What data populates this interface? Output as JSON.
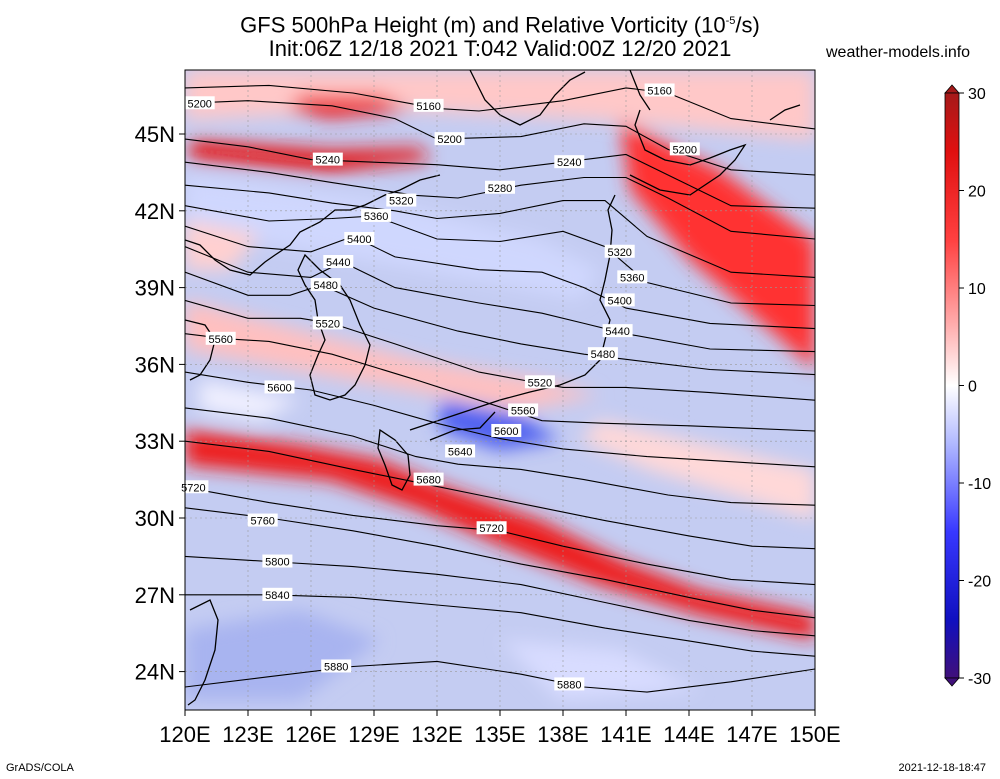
{
  "title": {
    "line1": "GFS 500hPa Height (m) and Relative Vorticity (10",
    "exp": "-5",
    "line1_end": "/s)",
    "line2": "Init:06Z 12/18 2021 T:042 Valid:00Z 12/20 2021"
  },
  "site": "weather-models.info",
  "footer": {
    "left": "GrADS/COLA",
    "right": "2021-12-18-18:47"
  },
  "map": {
    "lon_range": [
      120,
      150
    ],
    "lat_range": [
      22.5,
      47.5
    ],
    "lat_ticks": [
      {
        "value": 45,
        "label": "45N"
      },
      {
        "value": 42,
        "label": "42N"
      },
      {
        "value": 39,
        "label": "39N"
      },
      {
        "value": 36,
        "label": "36N"
      },
      {
        "value": 33,
        "label": "33N"
      },
      {
        "value": 30,
        "label": "30N"
      },
      {
        "value": 27,
        "label": "27N"
      },
      {
        "value": 24,
        "label": "24N"
      }
    ],
    "lon_ticks": [
      {
        "value": 120,
        "label": "120E"
      },
      {
        "value": 123,
        "label": "123E"
      },
      {
        "value": 126,
        "label": "126E"
      },
      {
        "value": 129,
        "label": "129E"
      },
      {
        "value": 132,
        "label": "132E"
      },
      {
        "value": 135,
        "label": "135E"
      },
      {
        "value": 138,
        "label": "138E"
      },
      {
        "value": 141,
        "label": "141E"
      },
      {
        "value": 144,
        "label": "144E"
      },
      {
        "value": 147,
        "label": "147E"
      },
      {
        "value": 150,
        "label": "150E"
      }
    ]
  },
  "colorbar": {
    "range": [
      -30,
      30
    ],
    "ticks": [
      {
        "value": 30,
        "label": "30"
      },
      {
        "value": 20,
        "label": "20"
      },
      {
        "value": 10,
        "label": "10"
      },
      {
        "value": 0,
        "label": "0"
      },
      {
        "value": -10,
        "label": "-10"
      },
      {
        "value": -20,
        "label": "-20"
      },
      {
        "value": -30,
        "label": "-30"
      }
    ]
  },
  "contours": [
    {
      "label": "5160",
      "pts": [
        [
          120,
          46.8
        ],
        [
          124,
          46.9
        ],
        [
          128,
          46.6
        ],
        [
          132,
          46.0
        ],
        [
          134,
          45.9
        ],
        [
          138,
          46.3
        ],
        [
          141,
          46.8
        ],
        [
          143,
          46.6
        ],
        [
          146,
          45.6
        ],
        [
          150,
          45.2
        ]
      ],
      "labels_at": [
        [
          131.6,
          46.1
        ],
        [
          142.6,
          46.7
        ]
      ]
    },
    {
      "label": "5200",
      "pts": [
        [
          120,
          46.2
        ],
        [
          123,
          46.3
        ],
        [
          127,
          46.1
        ],
        [
          130,
          45.6
        ],
        [
          132,
          44.8
        ],
        [
          136,
          44.9
        ],
        [
          139,
          45.4
        ],
        [
          141,
          45.3
        ],
        [
          143,
          44.4
        ],
        [
          146,
          43.6
        ],
        [
          150,
          43.4
        ]
      ],
      "labels_at": [
        [
          120.7,
          46.2
        ],
        [
          132.6,
          44.8
        ],
        [
          143.8,
          44.4
        ]
      ]
    },
    {
      "label": "5240",
      "pts": [
        [
          120,
          44.8
        ],
        [
          123,
          44.5
        ],
        [
          126,
          44.0
        ],
        [
          129,
          43.9
        ],
        [
          132,
          43.8
        ],
        [
          135,
          43.6
        ],
        [
          138,
          43.9
        ],
        [
          141,
          44.2
        ],
        [
          143,
          43.4
        ],
        [
          146,
          42.2
        ],
        [
          150,
          42.1
        ]
      ],
      "labels_at": [
        [
          126.8,
          44.0
        ],
        [
          138.3,
          43.9
        ]
      ]
    },
    {
      "label": "5280",
      "pts": [
        [
          120,
          43.9
        ],
        [
          124,
          43.5
        ],
        [
          127,
          43.1
        ],
        [
          131,
          42.6
        ],
        [
          133,
          42.5
        ],
        [
          136,
          43.0
        ],
        [
          139,
          43.3
        ],
        [
          141,
          43.3
        ],
        [
          143,
          42.5
        ],
        [
          146,
          41.2
        ],
        [
          150,
          40.9
        ]
      ],
      "labels_at": [
        [
          135.0,
          42.9
        ]
      ]
    },
    {
      "label": "5320",
      "pts": [
        [
          120,
          43.0
        ],
        [
          124,
          42.7
        ],
        [
          127,
          42.3
        ],
        [
          130,
          42.0
        ],
        [
          132,
          41.7
        ],
        [
          135,
          41.9
        ],
        [
          138,
          42.4
        ],
        [
          140,
          42.4
        ],
        [
          142,
          41.0
        ],
        [
          146,
          39.6
        ],
        [
          150,
          39.4
        ]
      ],
      "labels_at": [
        [
          130.3,
          42.4
        ],
        [
          140.7,
          40.4
        ]
      ]
    },
    {
      "label": "5360",
      "pts": [
        [
          120,
          42.2
        ],
        [
          124,
          41.6
        ],
        [
          127,
          41.7
        ],
        [
          129,
          41.8
        ],
        [
          132,
          40.9
        ],
        [
          135,
          40.8
        ],
        [
          138,
          41.2
        ],
        [
          140,
          40.6
        ],
        [
          142,
          39.2
        ],
        [
          146,
          38.4
        ],
        [
          150,
          38.3
        ]
      ],
      "labels_at": [
        [
          129.1,
          41.8
        ],
        [
          141.3,
          39.4
        ]
      ]
    },
    {
      "label": "5400",
      "pts": [
        [
          120,
          41.4
        ],
        [
          123,
          40.6
        ],
        [
          126,
          40.4
        ],
        [
          128,
          41.0
        ],
        [
          130,
          40.2
        ],
        [
          134,
          39.7
        ],
        [
          137,
          39.6
        ],
        [
          139,
          39.0
        ],
        [
          141,
          38.2
        ],
        [
          145,
          37.6
        ],
        [
          150,
          37.4
        ]
      ],
      "labels_at": [
        [
          128.3,
          40.9
        ],
        [
          140.7,
          38.5
        ]
      ]
    },
    {
      "label": "5440",
      "pts": [
        [
          120,
          40.6
        ],
        [
          123,
          39.6
        ],
        [
          126,
          39.4
        ],
        [
          127.5,
          40.0
        ],
        [
          130,
          39.0
        ],
        [
          134,
          38.4
        ],
        [
          137,
          38.0
        ],
        [
          139,
          37.6
        ],
        [
          141,
          37.2
        ],
        [
          145,
          36.6
        ],
        [
          150,
          36.5
        ]
      ],
      "labels_at": [
        [
          127.3,
          40.0
        ],
        [
          140.6,
          37.3
        ]
      ]
    },
    {
      "label": "5480",
      "pts": [
        [
          120,
          39.6
        ],
        [
          123,
          38.7
        ],
        [
          125,
          38.7
        ],
        [
          126.5,
          39.1
        ],
        [
          129,
          38.2
        ],
        [
          133,
          37.3
        ],
        [
          136,
          36.8
        ],
        [
          139,
          36.4
        ],
        [
          141,
          36.2
        ],
        [
          145,
          35.8
        ],
        [
          150,
          35.6
        ]
      ],
      "labels_at": [
        [
          126.7,
          39.1
        ],
        [
          139.9,
          36.4
        ]
      ]
    },
    {
      "label": "5520",
      "pts": [
        [
          120,
          38.5
        ],
        [
          123,
          37.8
        ],
        [
          125.5,
          37.8
        ],
        [
          127,
          37.6
        ],
        [
          130,
          36.8
        ],
        [
          134,
          35.7
        ],
        [
          138,
          35.1
        ],
        [
          141,
          35.1
        ],
        [
          145,
          34.9
        ],
        [
          150,
          34.6
        ]
      ],
      "labels_at": [
        [
          126.8,
          37.6
        ],
        [
          136.9,
          35.3
        ]
      ]
    },
    {
      "label": "5560",
      "pts": [
        [
          120,
          37.2
        ],
        [
          122,
          37.0
        ],
        [
          124,
          36.9
        ],
        [
          127,
          36.4
        ],
        [
          131,
          35.4
        ],
        [
          134,
          34.6
        ],
        [
          137,
          33.8
        ],
        [
          140,
          33.7
        ],
        [
          144,
          33.6
        ],
        [
          150,
          33.4
        ]
      ],
      "labels_at": [
        [
          121.7,
          37.0
        ],
        [
          136.1,
          34.2
        ]
      ]
    },
    {
      "label": "5600",
      "pts": [
        [
          120,
          35.7
        ],
        [
          123,
          35.3
        ],
        [
          126,
          35.0
        ],
        [
          129,
          34.4
        ],
        [
          132,
          33.7
        ],
        [
          135,
          33.1
        ],
        [
          138,
          32.7
        ],
        [
          142,
          32.4
        ],
        [
          146,
          32.2
        ],
        [
          150,
          32.0
        ]
      ],
      "labels_at": [
        [
          124.5,
          35.1
        ],
        [
          135.3,
          33.4
        ]
      ]
    },
    {
      "label": "5640",
      "pts": [
        [
          120,
          34.3
        ],
        [
          124,
          33.9
        ],
        [
          128,
          33.2
        ],
        [
          131,
          32.4
        ],
        [
          133,
          32.1
        ],
        [
          136,
          31.9
        ],
        [
          139,
          31.5
        ],
        [
          143,
          30.9
        ],
        [
          146,
          30.6
        ],
        [
          150,
          30.5
        ]
      ],
      "labels_at": [
        [
          133.1,
          32.6
        ]
      ]
    },
    {
      "label": "5680",
      "pts": [
        [
          120,
          33.0
        ],
        [
          124,
          32.6
        ],
        [
          128,
          31.9
        ],
        [
          131,
          31.4
        ],
        [
          134,
          30.9
        ],
        [
          137,
          30.4
        ],
        [
          140,
          29.9
        ],
        [
          144,
          29.3
        ],
        [
          147,
          28.9
        ],
        [
          150,
          28.8
        ]
      ],
      "labels_at": [
        [
          131.6,
          31.5
        ]
      ]
    },
    {
      "label": "5720",
      "pts": [
        [
          120,
          31.2
        ],
        [
          124,
          30.6
        ],
        [
          128,
          30.1
        ],
        [
          132,
          29.7
        ],
        [
          135,
          29.5
        ],
        [
          138,
          28.9
        ],
        [
          142,
          28.2
        ],
        [
          146,
          27.6
        ],
        [
          150,
          27.4
        ]
      ],
      "labels_at": [
        [
          120.4,
          31.2
        ],
        [
          134.6,
          29.6
        ]
      ]
    },
    {
      "label": "5760",
      "pts": [
        [
          120,
          30.4
        ],
        [
          124,
          30.0
        ],
        [
          128,
          29.5
        ],
        [
          132,
          28.9
        ],
        [
          136,
          28.2
        ],
        [
          140,
          27.6
        ],
        [
          144,
          26.9
        ],
        [
          147,
          26.4
        ],
        [
          150,
          26.1
        ]
      ],
      "labels_at": [
        [
          123.7,
          29.9
        ]
      ]
    },
    {
      "label": "5800",
      "pts": [
        [
          120,
          28.5
        ],
        [
          124,
          28.3
        ],
        [
          128,
          28.1
        ],
        [
          132,
          27.8
        ],
        [
          136,
          27.4
        ],
        [
          140,
          26.7
        ],
        [
          144,
          26.0
        ],
        [
          147,
          25.6
        ],
        [
          150,
          25.4
        ]
      ],
      "labels_at": [
        [
          124.4,
          28.3
        ]
      ]
    },
    {
      "label": "5840",
      "pts": [
        [
          120,
          27.0
        ],
        [
          124,
          27.0
        ],
        [
          128,
          26.9
        ],
        [
          132,
          26.6
        ],
        [
          136,
          26.3
        ],
        [
          140,
          25.7
        ],
        [
          144,
          25.2
        ],
        [
          147,
          24.8
        ],
        [
          150,
          24.6
        ]
      ],
      "labels_at": [
        [
          124.4,
          27.0
        ]
      ]
    },
    {
      "label": "5880",
      "pts": [
        [
          120,
          23.4
        ],
        [
          124,
          23.8
        ],
        [
          128,
          24.2
        ],
        [
          132,
          24.4
        ],
        [
          136,
          23.9
        ],
        [
          139,
          23.4
        ],
        [
          142,
          23.2
        ],
        [
          146,
          23.6
        ],
        [
          150,
          24.1
        ]
      ],
      "labels_at": [
        [
          127.2,
          24.2
        ],
        [
          138.3,
          23.5
        ]
      ]
    }
  ]
}
